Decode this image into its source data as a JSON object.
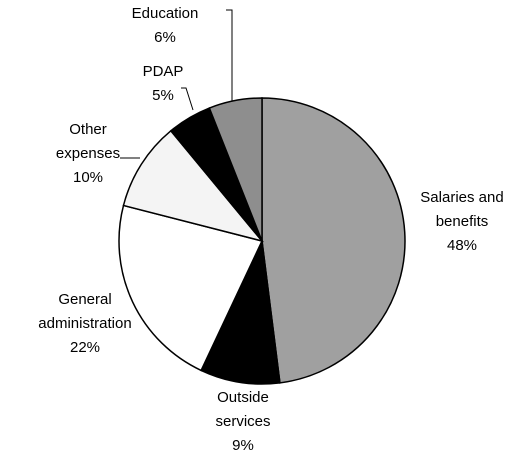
{
  "chart_data": {
    "type": "pie",
    "categories": [
      "Salaries and\nbenefits",
      "Outside\nservices",
      "General\nadministration",
      "Other\nexpenses",
      "PDAP",
      "Education"
    ],
    "values": [
      48,
      9,
      22,
      10,
      5,
      6
    ],
    "value_labels": [
      "48%",
      "9%",
      "22%",
      "10%",
      "5%",
      "6%"
    ],
    "colors": [
      "#a0a0a0",
      "#000000",
      "#ffffff",
      "#f4f4f4",
      "#000000",
      "#8e8e8e"
    ]
  }
}
